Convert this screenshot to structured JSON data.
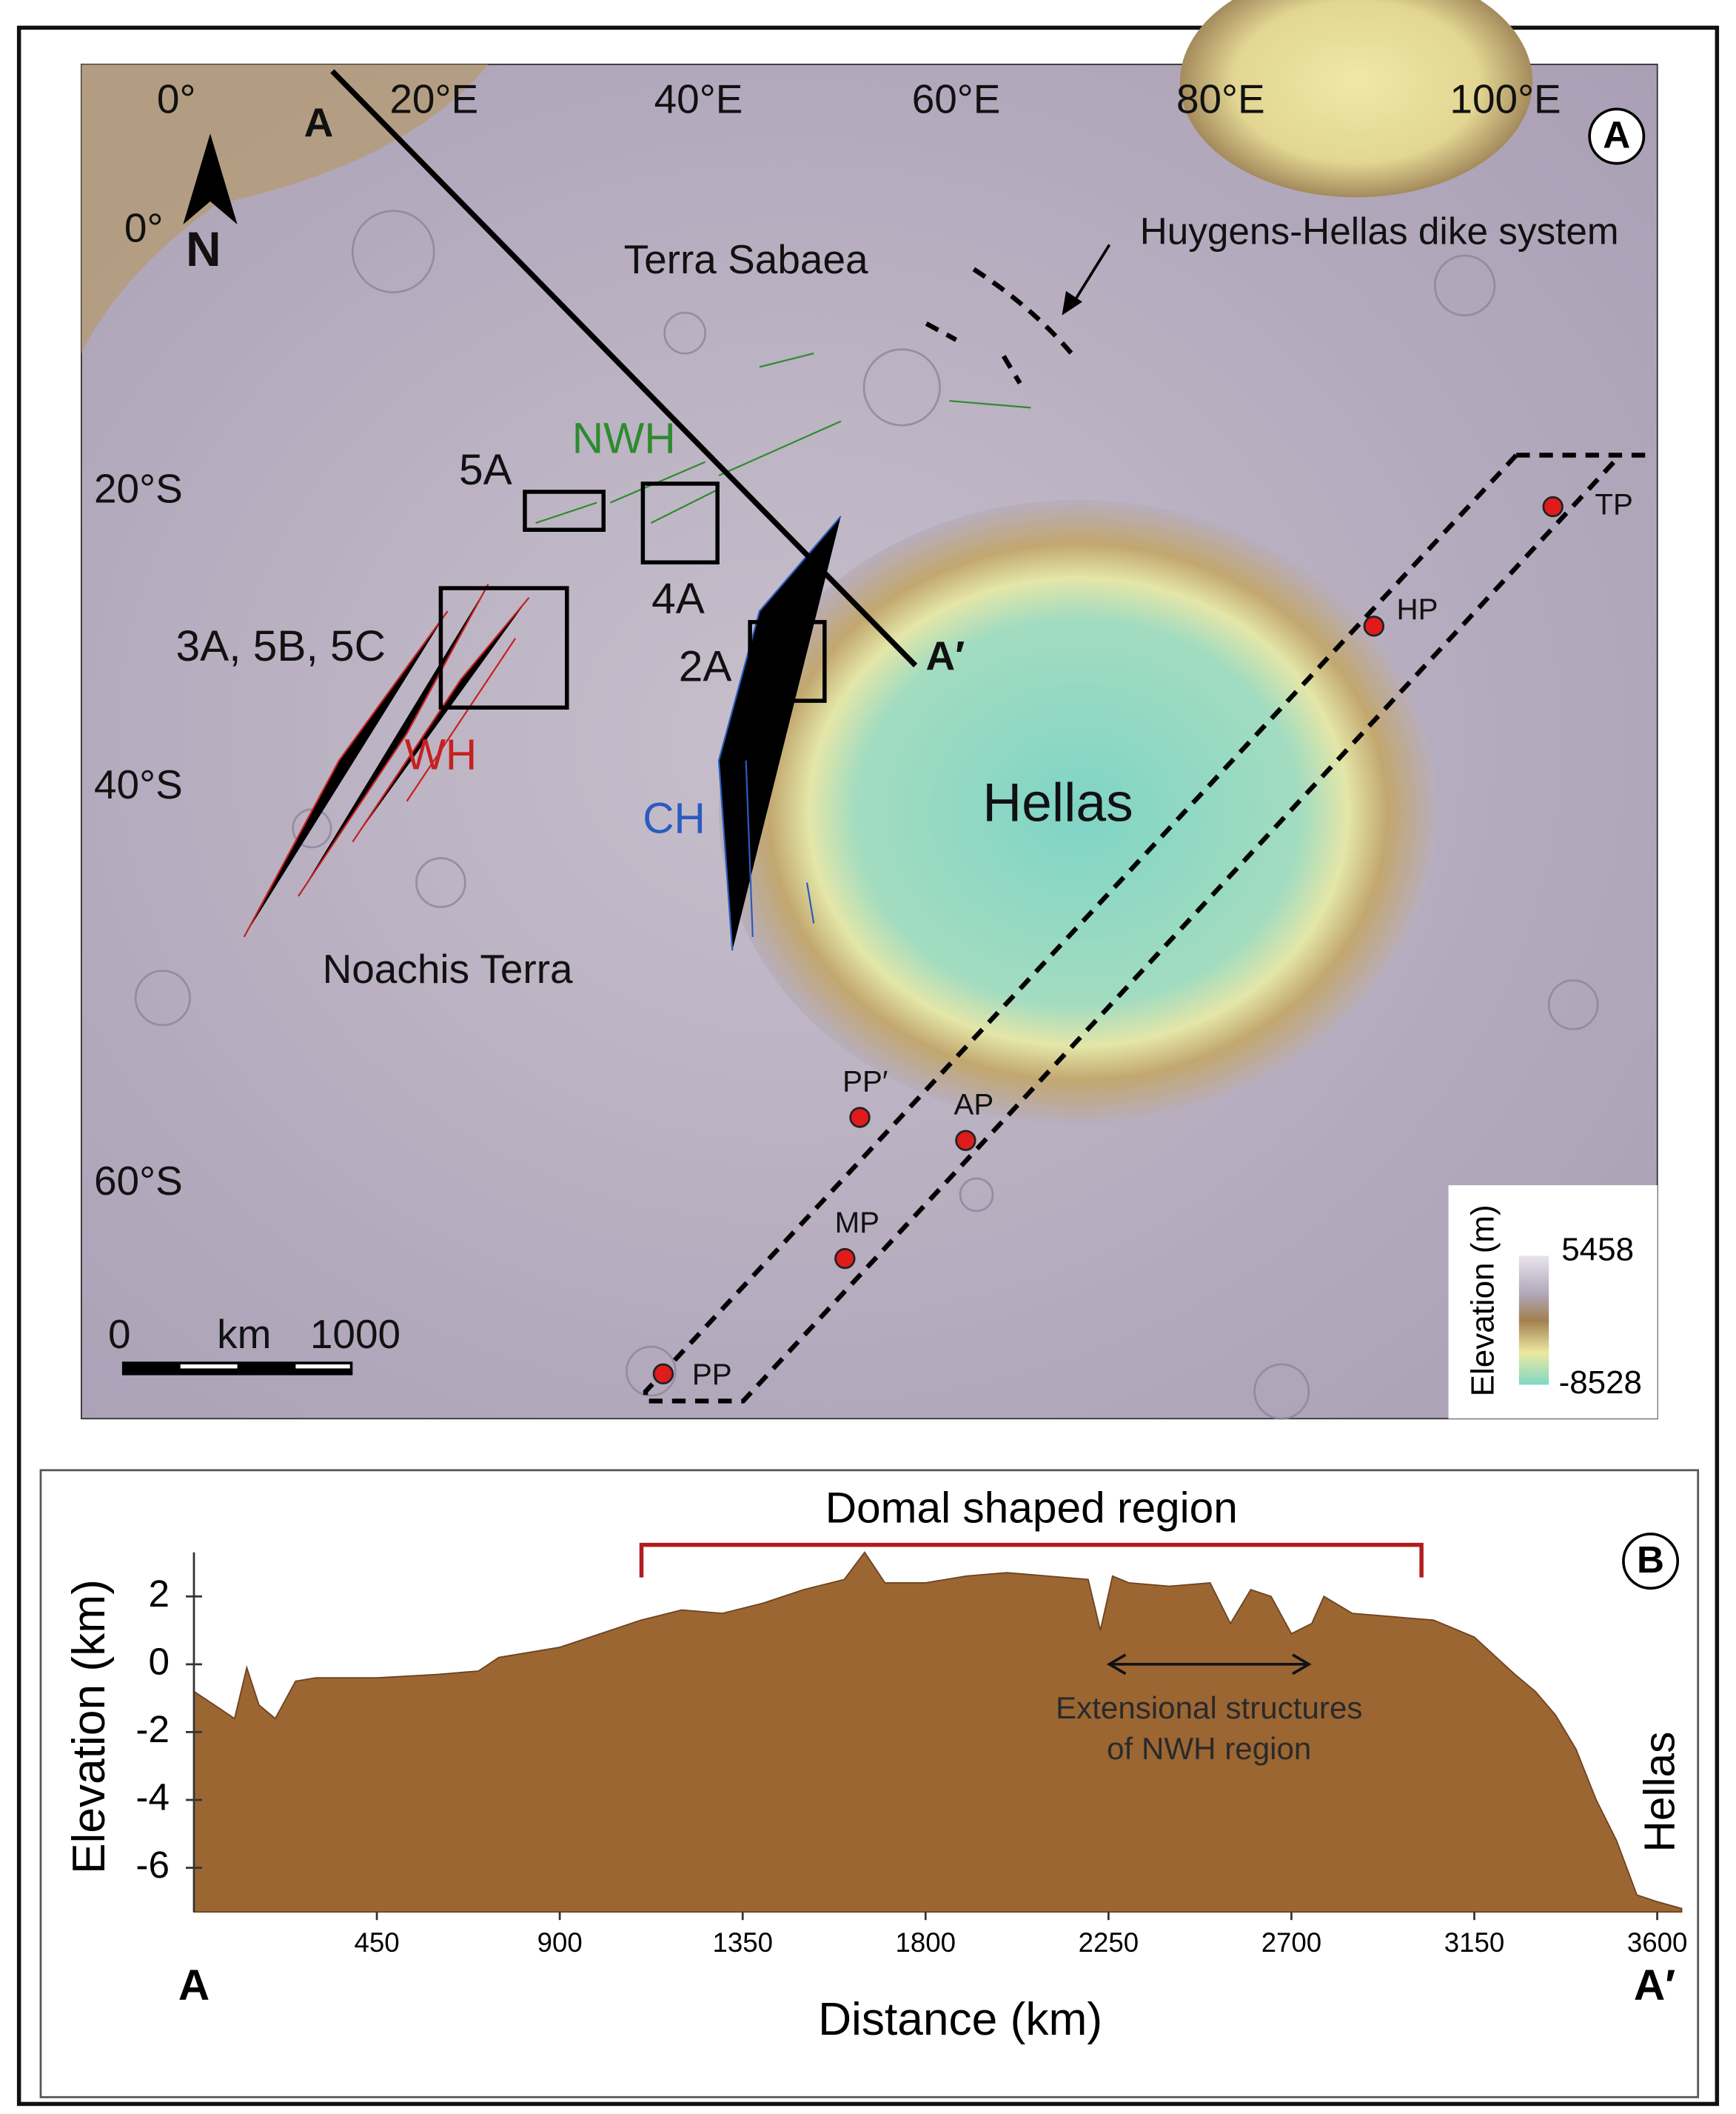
{
  "map": {
    "panel_label": "A",
    "longitudes": [
      "0°",
      "20°E",
      "40°E",
      "60°E",
      "80°E",
      "100°E"
    ],
    "latitudes": [
      "0°",
      "20°S",
      "40°S",
      "60°S"
    ],
    "profile_start": "A",
    "profile_end": "A′",
    "regions": {
      "terra_sabaea": "Terra Sabaea",
      "noachis": "Noachis Terra",
      "hellas": "Hellas",
      "nwh": "NWH",
      "wh": "WH",
      "ch": "CH"
    },
    "dike": "Huygens-Hellas dike system",
    "boxes": [
      "5A",
      "4A",
      "3A, 5B, 5C",
      "2A"
    ],
    "sites": [
      "TP",
      "HP",
      "PP′",
      "AP",
      "MP",
      "PP"
    ],
    "north": "N",
    "scale": {
      "start": "0",
      "unit": "km",
      "end": "1000"
    },
    "colorbar": {
      "label": "Elevation (m)",
      "max": 5458,
      "min": -8528
    }
  },
  "chart_data": {
    "type": "area",
    "panel_label": "B",
    "title": "Domal shaped region",
    "x_label": "Distance (km)",
    "y_label": "Elevation (km)",
    "start_label": "A",
    "end_label": "A′",
    "side_label": "Hellas",
    "annotation": {
      "lines": [
        "Extensional structures",
        "of NWH region"
      ],
      "xrange": [
        2252,
        2743
      ]
    },
    "bracket": {
      "xrange": [
        1101,
        3020
      ],
      "color": "#b01c1c"
    },
    "x": [
      0,
      50,
      100,
      130,
      160,
      200,
      250,
      300,
      450,
      600,
      700,
      750,
      900,
      1000,
      1100,
      1200,
      1300,
      1400,
      1500,
      1600,
      1650,
      1700,
      1800,
      1900,
      2000,
      2100,
      2200,
      2230,
      2260,
      2300,
      2400,
      2500,
      2550,
      2600,
      2650,
      2700,
      2750,
      2780,
      2850,
      2950,
      3050,
      3150,
      3250,
      3300,
      3350,
      3400,
      3450,
      3500,
      3550,
      3600,
      3660
    ],
    "values": [
      -0.8,
      -1.2,
      -1.6,
      -0.1,
      -1.2,
      -1.6,
      -0.5,
      -0.4,
      -0.4,
      -0.3,
      -0.2,
      0.2,
      0.5,
      0.9,
      1.3,
      1.6,
      1.5,
      1.8,
      2.2,
      2.5,
      3.3,
      2.4,
      2.4,
      2.6,
      2.7,
      2.6,
      2.5,
      1.0,
      2.6,
      2.4,
      2.3,
      2.4,
      1.2,
      2.2,
      2.0,
      0.9,
      1.2,
      2.0,
      1.5,
      1.4,
      1.3,
      0.8,
      -0.3,
      -0.8,
      -1.5,
      -2.5,
      -4,
      -5.2,
      -6.8,
      -7.0,
      -7.2
    ],
    "color": "#9c6633",
    "xlim": [
      0,
      3660
    ],
    "ylim": [
      -7.3,
      3.3
    ],
    "xticks": [
      450,
      900,
      1350,
      1800,
      2250,
      2700,
      3150,
      3600
    ],
    "yticks": [
      2,
      0,
      -2,
      -4,
      -6
    ]
  }
}
